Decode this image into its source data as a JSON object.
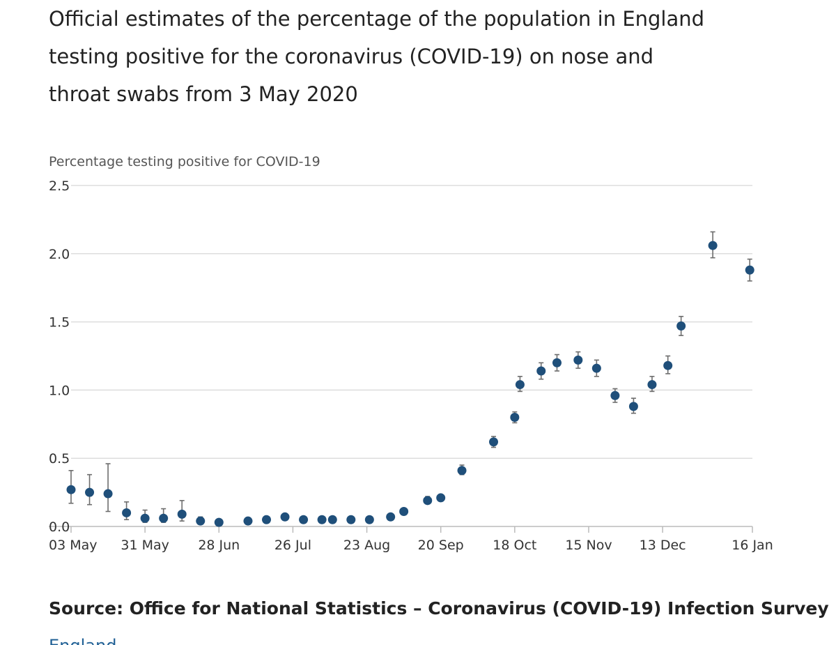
{
  "page": {
    "title": "Official estimates of the percentage of the population in England testing positive for the coronavirus (COVID-19) on nose and throat swabs from 3 May 2020",
    "source": "Source: Office for National Statistics – Coronavirus (COVID-19) Infection Survey",
    "footer_link": "England"
  },
  "colors": {
    "point": "#1f4f7a",
    "error_bar": "#6d6d6d",
    "grid": "#dddddd",
    "axis": "#bbbbbb"
  },
  "chart_data": {
    "type": "scatter",
    "title": "",
    "ylabel": "Percentage testing positive for COVID-19",
    "xlabel": "",
    "ylim": [
      0,
      2.5
    ],
    "yticks": [
      "0.0",
      "0.5",
      "1.0",
      "1.5",
      "2.0",
      "2.5"
    ],
    "xlim": [
      "2020-05-03",
      "2021-01-16"
    ],
    "xticks": [
      {
        "date": "2020-05-03",
        "label": "03 May"
      },
      {
        "date": "2020-05-31",
        "label": "31 May"
      },
      {
        "date": "2020-06-28",
        "label": "28 Jun"
      },
      {
        "date": "2020-07-26",
        "label": "26 Jul"
      },
      {
        "date": "2020-08-23",
        "label": "23 Aug"
      },
      {
        "date": "2020-09-20",
        "label": "20 Sep"
      },
      {
        "date": "2020-10-18",
        "label": "18 Oct"
      },
      {
        "date": "2020-11-15",
        "label": "15 Nov"
      },
      {
        "date": "2020-12-13",
        "label": "13 Dec"
      },
      {
        "date": "2021-01-16",
        "label": "16 Jan"
      }
    ],
    "grid": true,
    "series": [
      {
        "points": [
          {
            "date": "2020-05-03",
            "value": 0.27,
            "lower": 0.17,
            "upper": 0.41
          },
          {
            "date": "2020-05-10",
            "value": 0.25,
            "lower": 0.16,
            "upper": 0.38
          },
          {
            "date": "2020-05-17",
            "value": 0.24,
            "lower": 0.11,
            "upper": 0.46
          },
          {
            "date": "2020-05-24",
            "value": 0.1,
            "lower": 0.05,
            "upper": 0.18
          },
          {
            "date": "2020-05-31",
            "value": 0.06,
            "lower": 0.03,
            "upper": 0.12
          },
          {
            "date": "2020-06-07",
            "value": 0.06,
            "lower": 0.03,
            "upper": 0.13
          },
          {
            "date": "2020-06-14",
            "value": 0.09,
            "lower": 0.04,
            "upper": 0.19
          },
          {
            "date": "2020-06-21",
            "value": 0.04,
            "lower": 0.02,
            "upper": 0.07
          },
          {
            "date": "2020-06-28",
            "value": 0.03,
            "lower": 0.02,
            "upper": 0.05
          },
          {
            "date": "2020-07-09",
            "value": 0.04,
            "lower": 0.03,
            "upper": 0.06
          },
          {
            "date": "2020-07-16",
            "value": 0.05,
            "lower": 0.04,
            "upper": 0.06
          },
          {
            "date": "2020-07-23",
            "value": 0.07,
            "lower": 0.06,
            "upper": 0.09
          },
          {
            "date": "2020-07-30",
            "value": 0.05,
            "lower": 0.04,
            "upper": 0.06
          },
          {
            "date": "2020-08-06",
            "value": 0.05,
            "lower": 0.04,
            "upper": 0.06
          },
          {
            "date": "2020-08-10",
            "value": 0.05,
            "lower": 0.04,
            "upper": 0.06
          },
          {
            "date": "2020-08-17",
            "value": 0.05,
            "lower": 0.04,
            "upper": 0.06
          },
          {
            "date": "2020-08-24",
            "value": 0.05,
            "lower": 0.04,
            "upper": 0.06
          },
          {
            "date": "2020-09-01",
            "value": 0.07,
            "lower": 0.06,
            "upper": 0.09
          },
          {
            "date": "2020-09-06",
            "value": 0.11,
            "lower": 0.09,
            "upper": 0.13
          },
          {
            "date": "2020-09-15",
            "value": 0.19,
            "lower": 0.17,
            "upper": 0.22
          },
          {
            "date": "2020-09-20",
            "value": 0.21,
            "lower": 0.19,
            "upper": 0.23
          },
          {
            "date": "2020-09-28",
            "value": 0.41,
            "lower": 0.38,
            "upper": 0.45
          },
          {
            "date": "2020-10-10",
            "value": 0.62,
            "lower": 0.58,
            "upper": 0.66
          },
          {
            "date": "2020-10-18",
            "value": 0.8,
            "lower": 0.76,
            "upper": 0.84
          },
          {
            "date": "2020-10-20",
            "value": 1.04,
            "lower": 0.99,
            "upper": 1.1
          },
          {
            "date": "2020-10-28",
            "value": 1.14,
            "lower": 1.08,
            "upper": 1.2
          },
          {
            "date": "2020-11-03",
            "value": 1.2,
            "lower": 1.14,
            "upper": 1.26
          },
          {
            "date": "2020-11-11",
            "value": 1.22,
            "lower": 1.16,
            "upper": 1.28
          },
          {
            "date": "2020-11-18",
            "value": 1.16,
            "lower": 1.1,
            "upper": 1.22
          },
          {
            "date": "2020-11-25",
            "value": 0.96,
            "lower": 0.91,
            "upper": 1.01
          },
          {
            "date": "2020-12-02",
            "value": 0.88,
            "lower": 0.83,
            "upper": 0.94
          },
          {
            "date": "2020-12-09",
            "value": 1.04,
            "lower": 0.99,
            "upper": 1.1
          },
          {
            "date": "2020-12-15",
            "value": 1.18,
            "lower": 1.12,
            "upper": 1.25
          },
          {
            "date": "2020-12-20",
            "value": 1.47,
            "lower": 1.4,
            "upper": 1.54
          },
          {
            "date": "2021-01-01",
            "value": 2.06,
            "lower": 1.97,
            "upper": 2.16
          },
          {
            "date": "2021-01-15",
            "value": 1.88,
            "lower": 1.8,
            "upper": 1.96
          }
        ]
      }
    ]
  }
}
